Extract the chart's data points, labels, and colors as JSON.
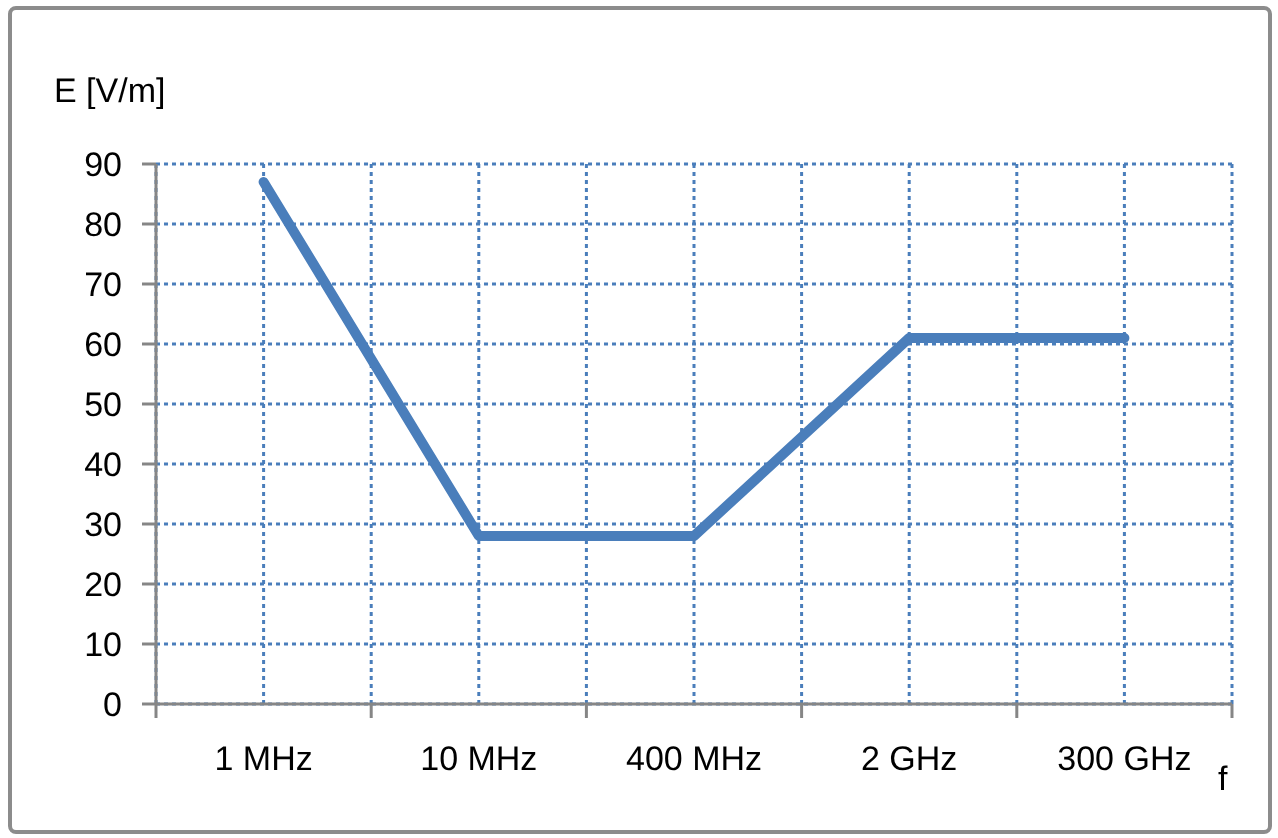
{
  "chart_data": {
    "type": "line",
    "xlabel": "f",
    "ylabel": "E [V/m]",
    "categories": [
      "1 MHz",
      "10 MHz",
      "400 MHz",
      "2 GHz",
      "300 GHz"
    ],
    "values": [
      87,
      28,
      28,
      61,
      61
    ],
    "color": "#4a7ebb",
    "ylim": [
      0,
      90
    ],
    "yticks": [
      0,
      10,
      20,
      30,
      40,
      50,
      60,
      70,
      80,
      90
    ],
    "grid": true,
    "marker": "none",
    "line_style": "solid"
  }
}
